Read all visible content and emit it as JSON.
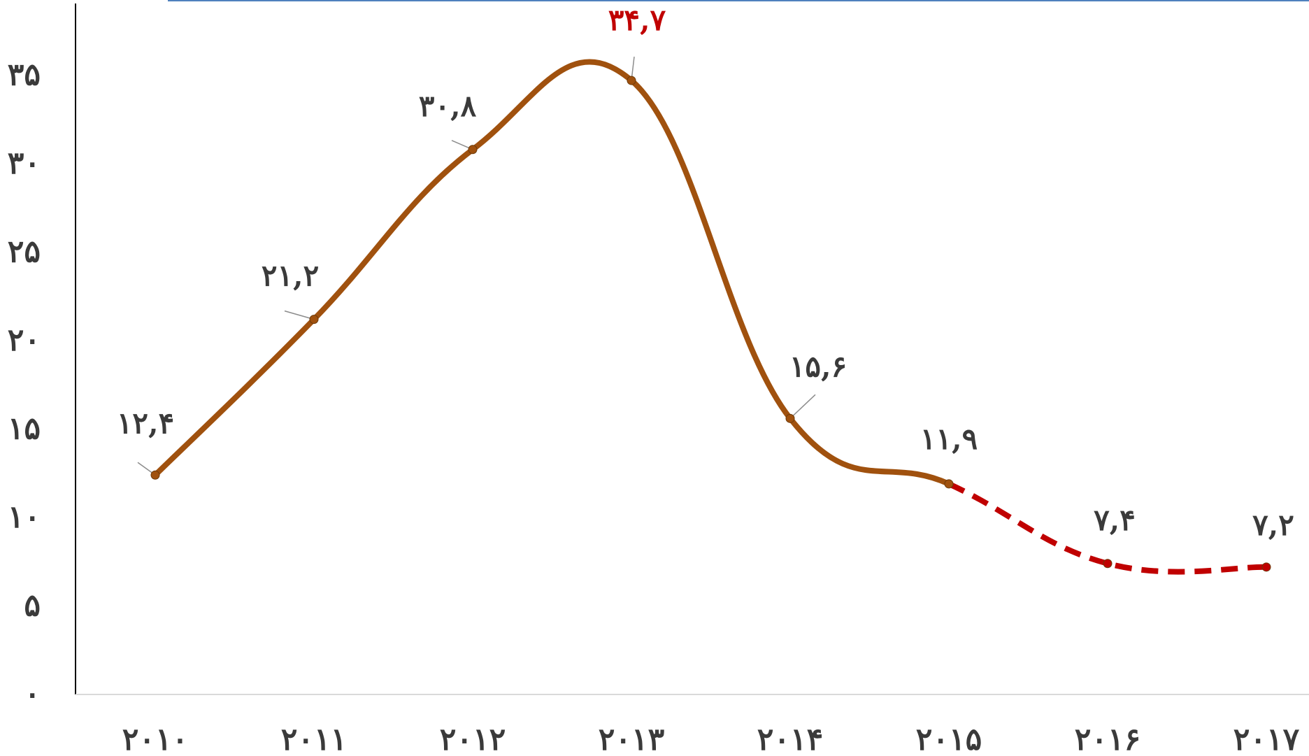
{
  "chart_data": {
    "type": "line",
    "title": "",
    "xlabel": "",
    "ylabel": "",
    "ylim": [
      0,
      40
    ],
    "grid": false,
    "y_tick_values": [
      0,
      5,
      10,
      15,
      20,
      25,
      30,
      35
    ],
    "y_tick_labels": [
      "۰",
      "۵",
      "۱۰",
      "۱۵",
      "۲۰",
      "۲۵",
      "۳۰",
      "۳۵"
    ],
    "x": [
      2010,
      2011,
      2012,
      2013,
      2014,
      2015,
      2016,
      2017
    ],
    "x_tick_labels": [
      "۲۰۱۰",
      "۲۰۱۱",
      "۲۰۱۲",
      "۲۰۱۳",
      "۲۰۱۴",
      "۲۰۱۵",
      "۲۰۱۶",
      "۲۰۱۷"
    ],
    "series": [
      {
        "values": [
          12.4,
          21.2,
          30.8,
          34.7,
          15.6,
          11.9,
          7.4,
          7.2
        ],
        "data_labels": [
          "۱۲,۴",
          "۲۱,۲",
          "۳۰,۸",
          "۳۴,۷",
          "۱۵,۶",
          "۱۱,۹",
          "۷,۴",
          "۷,۲"
        ],
        "color": "#a0510e",
        "forecast_color": "#c00000",
        "forecast_from_index": 5
      }
    ],
    "highlight_index": 3,
    "highlight_color": "#c00000",
    "top_rule_color": "#4f81bd"
  }
}
